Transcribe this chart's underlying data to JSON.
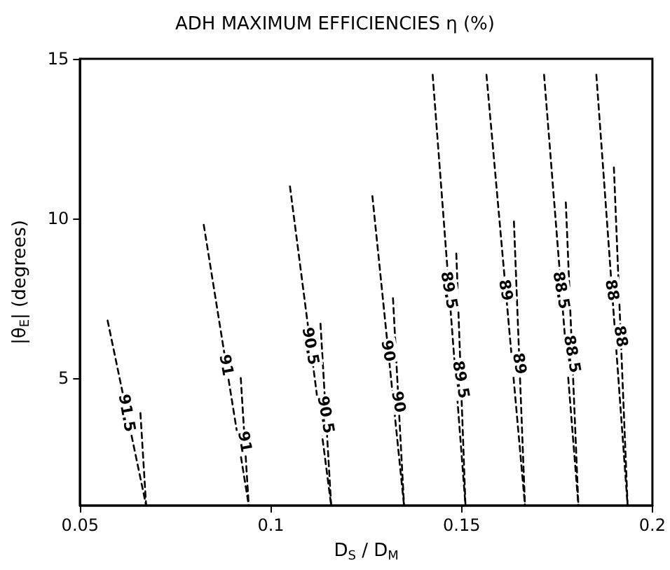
{
  "chart_data": {
    "type": "line",
    "title": "ADH MAXIMUM EFFICIENCIES η (%)",
    "xlabel": "D$_{S}$ / D$_{M}$",
    "ylabel": "|θ$_{E}$| (degrees)",
    "xlim": [
      0.05,
      0.2
    ],
    "xticks": [
      0.05,
      0.1,
      0.15,
      0.2
    ],
    "ylim": [
      1,
      15
    ],
    "yticks": [
      5,
      10,
      15
    ],
    "grid": false,
    "legend": false,
    "marker": "none",
    "line_style": "dashed",
    "series": [
      {
        "name": "91.5",
        "color": "#000000",
        "x": [
          0.0572,
          0.0673
        ],
        "values": [
          6.8,
          1.0
        ]
      },
      {
        "color": "#000000",
        "x": [
          0.0658,
          0.0673
        ],
        "values": [
          3.9,
          1.0
        ]
      },
      {
        "name": "91",
        "color": "#000000",
        "x": [
          0.0824,
          0.0942
        ],
        "values": [
          9.8,
          1.0
        ]
      },
      {
        "name": "91",
        "color": "#000000",
        "x": [
          0.0921,
          0.0942
        ],
        "values": [
          5.0,
          1.0
        ]
      },
      {
        "name": "90.5",
        "color": "#000000",
        "x": [
          0.105,
          0.1158
        ],
        "values": [
          11.0,
          1.0
        ]
      },
      {
        "name": "90.5",
        "color": "#000000",
        "x": [
          0.113,
          0.1158
        ],
        "values": [
          6.7,
          1.0
        ]
      },
      {
        "name": "90",
        "color": "#000000",
        "x": [
          0.1266,
          0.1349
        ],
        "values": [
          10.7,
          1.0
        ]
      },
      {
        "name": "90",
        "color": "#000000",
        "x": [
          0.132,
          0.1349
        ],
        "values": [
          7.5,
          1.0
        ]
      },
      {
        "name": "89.5",
        "color": "#000000",
        "x": [
          0.1424,
          0.151
        ],
        "values": [
          14.5,
          1.0
        ]
      },
      {
        "name": "89.5",
        "color": "#000000",
        "x": [
          0.1486,
          0.151
        ],
        "values": [
          8.9,
          1.0
        ]
      },
      {
        "name": "89",
        "color": "#000000",
        "x": [
          0.1565,
          0.1666
        ],
        "values": [
          14.5,
          1.0
        ]
      },
      {
        "name": "89",
        "color": "#000000",
        "x": [
          0.1637,
          0.1666
        ],
        "values": [
          9.9,
          1.0
        ]
      },
      {
        "name": "88.5",
        "color": "#000000",
        "x": [
          0.1716,
          0.1806
        ],
        "values": [
          14.5,
          1.0
        ]
      },
      {
        "name": "88.5",
        "color": "#000000",
        "x": [
          0.1773,
          0.1806
        ],
        "values": [
          10.5,
          1.0
        ]
      },
      {
        "name": "88",
        "color": "#000000",
        "x": [
          0.1853,
          0.1935
        ],
        "values": [
          14.5,
          1.0
        ]
      },
      {
        "name": "88",
        "color": "#000000",
        "x": [
          0.1899,
          0.1935
        ],
        "values": [
          11.6,
          1.0
        ]
      }
    ]
  }
}
